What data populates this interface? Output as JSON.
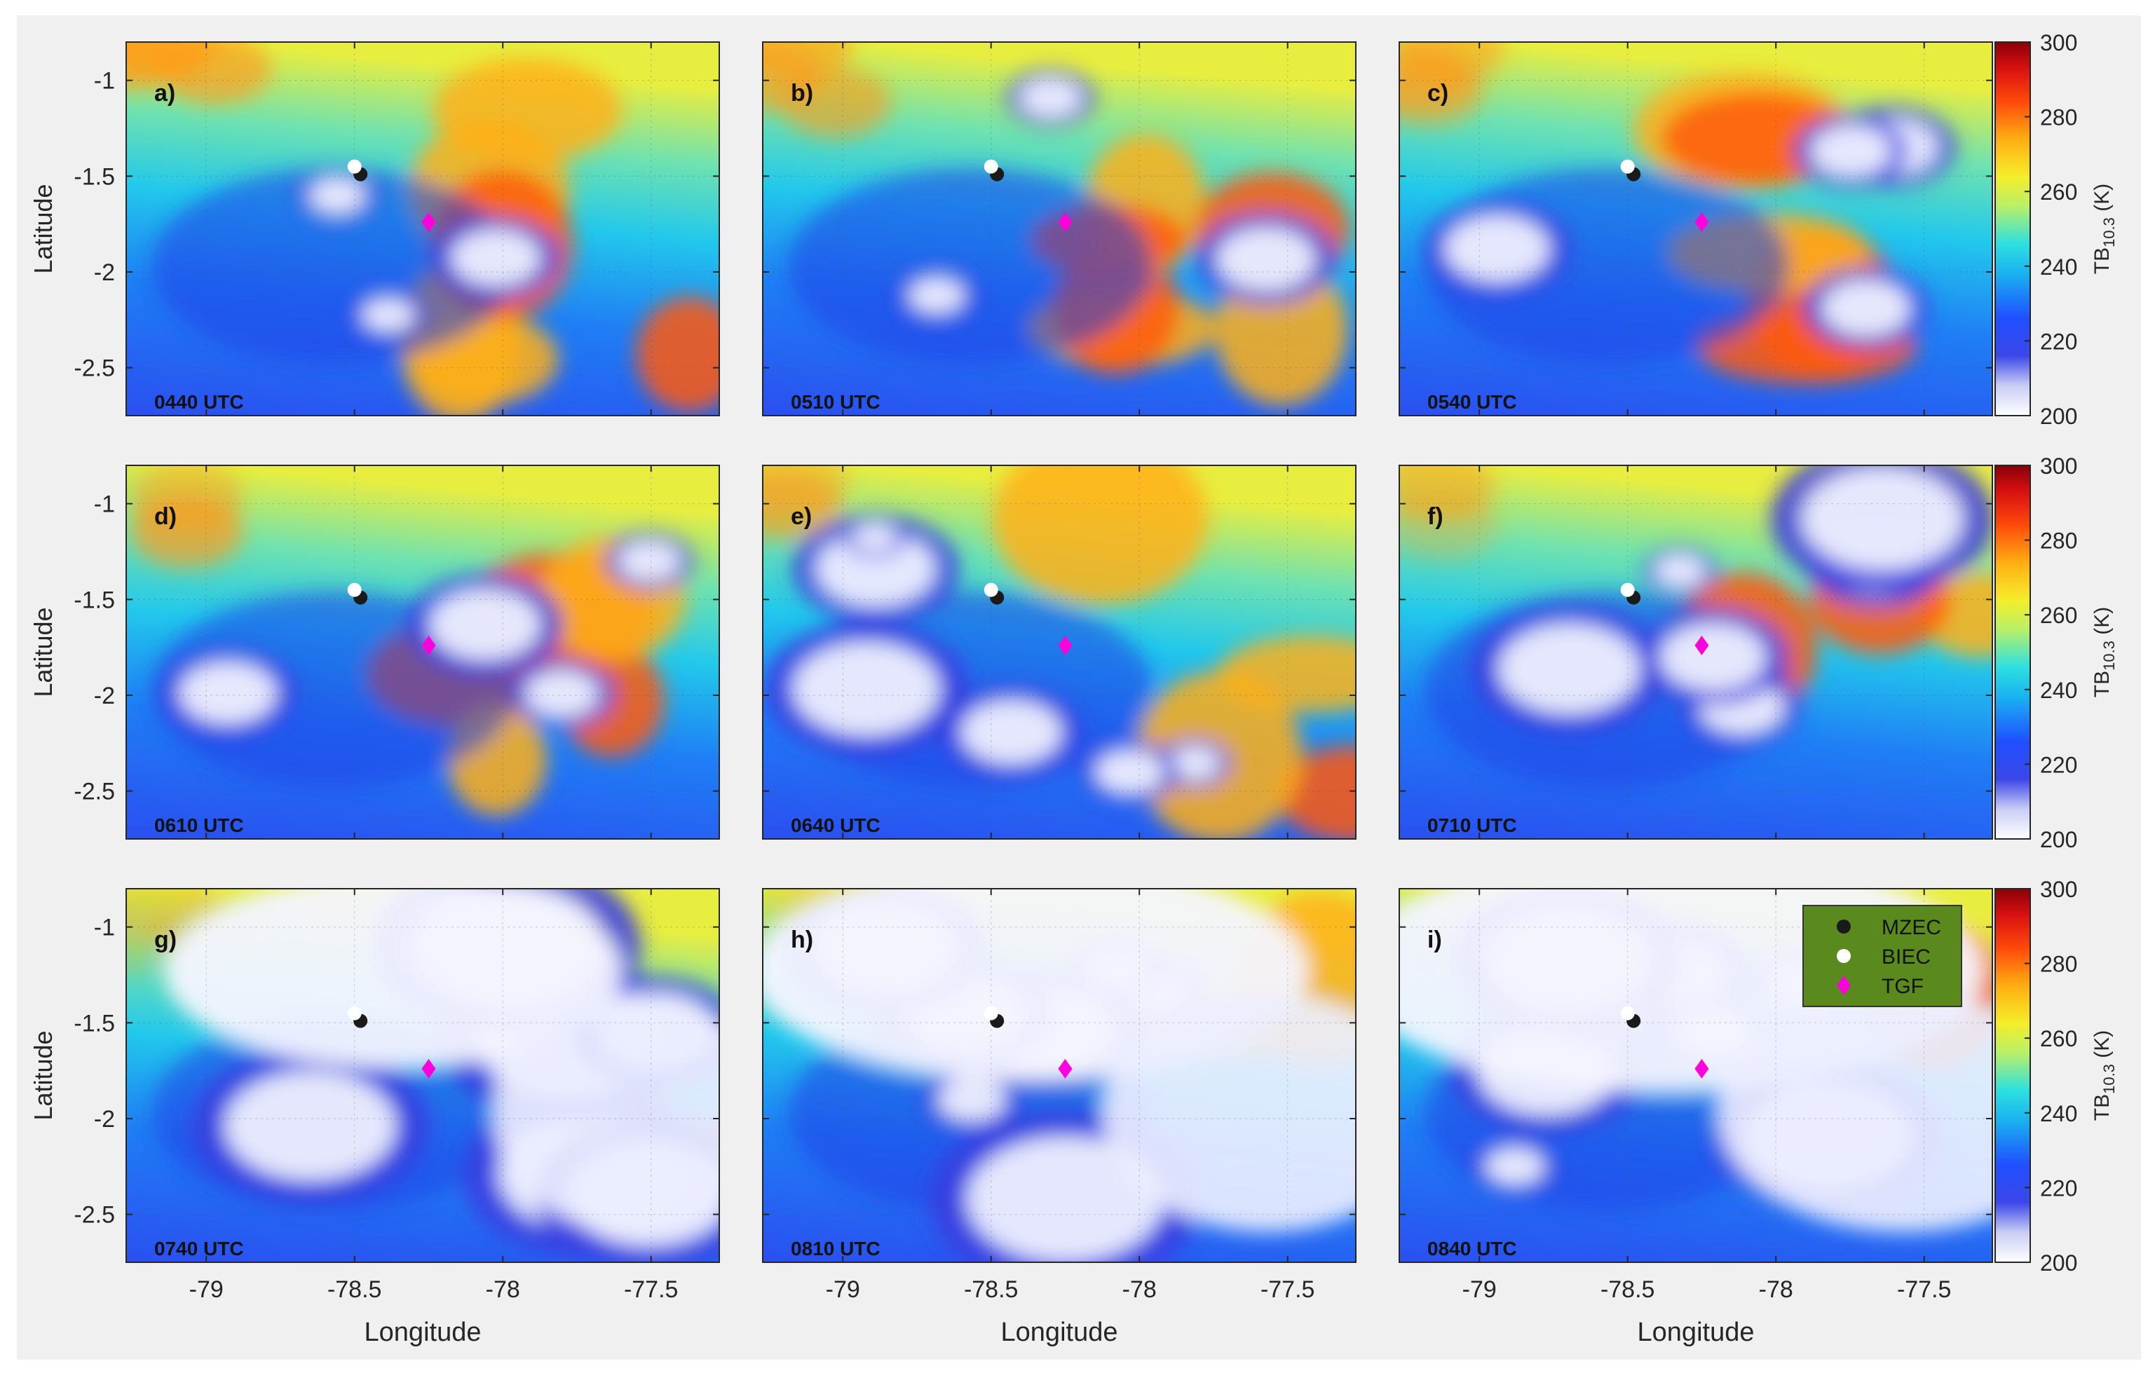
{
  "chart_data": {
    "type": "heatmap",
    "xlabel": "Longitude",
    "ylabel": "Latitude",
    "xlim": [
      -79.27,
      -77.27
    ],
    "ylim": [
      -2.75,
      -0.8
    ],
    "xticks": [
      -79,
      -78.5,
      -78,
      -77.5
    ],
    "xtick_labels": [
      "-79",
      "-78.5",
      "-78",
      "-77.5"
    ],
    "yticks": [
      -1,
      -1.5,
      -2,
      -2.5
    ],
    "ytick_labels": [
      "-1",
      "-1.5",
      "-2",
      "-2.5"
    ],
    "grid": true,
    "colorbar": {
      "label_main": "TB",
      "label_sub": "10.3",
      "label_unit": "(K)",
      "min": 200,
      "max": 300,
      "ticks": [
        "200",
        "220",
        "240",
        "260",
        "280",
        "300"
      ],
      "colormap": "jet (reversed: white/blue = cold, red = warm)"
    },
    "points": {
      "MZEC": {
        "lon": -78.48,
        "lat": -1.49,
        "color": "#1a1a1a",
        "marker": "circle"
      },
      "BIEC": {
        "lon": -78.5,
        "lat": -1.45,
        "color": "#ffffff",
        "marker": "circle"
      },
      "TGF": {
        "lon": -78.25,
        "lat": -1.74,
        "color": "#ff00dd",
        "marker": "diamond"
      }
    },
    "legend": {
      "placement": "top-right of panel i",
      "background": "#5a8a1e",
      "entries": [
        "MZEC",
        "BIEC",
        "TGF"
      ]
    },
    "panels": [
      {
        "letter": "a)",
        "time": "0440 UTC",
        "cold_fraction": 0.1
      },
      {
        "letter": "b)",
        "time": "0510 UTC",
        "cold_fraction": 0.2
      },
      {
        "letter": "c)",
        "time": "0540 UTC",
        "cold_fraction": 0.3
      },
      {
        "letter": "d)",
        "time": "0610 UTC",
        "cold_fraction": 0.4
      },
      {
        "letter": "e)",
        "time": "0640 UTC",
        "cold_fraction": 0.5
      },
      {
        "letter": "f)",
        "time": "0710 UTC",
        "cold_fraction": 0.6
      },
      {
        "letter": "g)",
        "time": "0740 UTC",
        "cold_fraction": 0.72
      },
      {
        "letter": "h)",
        "time": "0810 UTC",
        "cold_fraction": 0.85
      },
      {
        "letter": "i)",
        "time": "0840 UTC",
        "cold_fraction": 0.95
      }
    ]
  }
}
